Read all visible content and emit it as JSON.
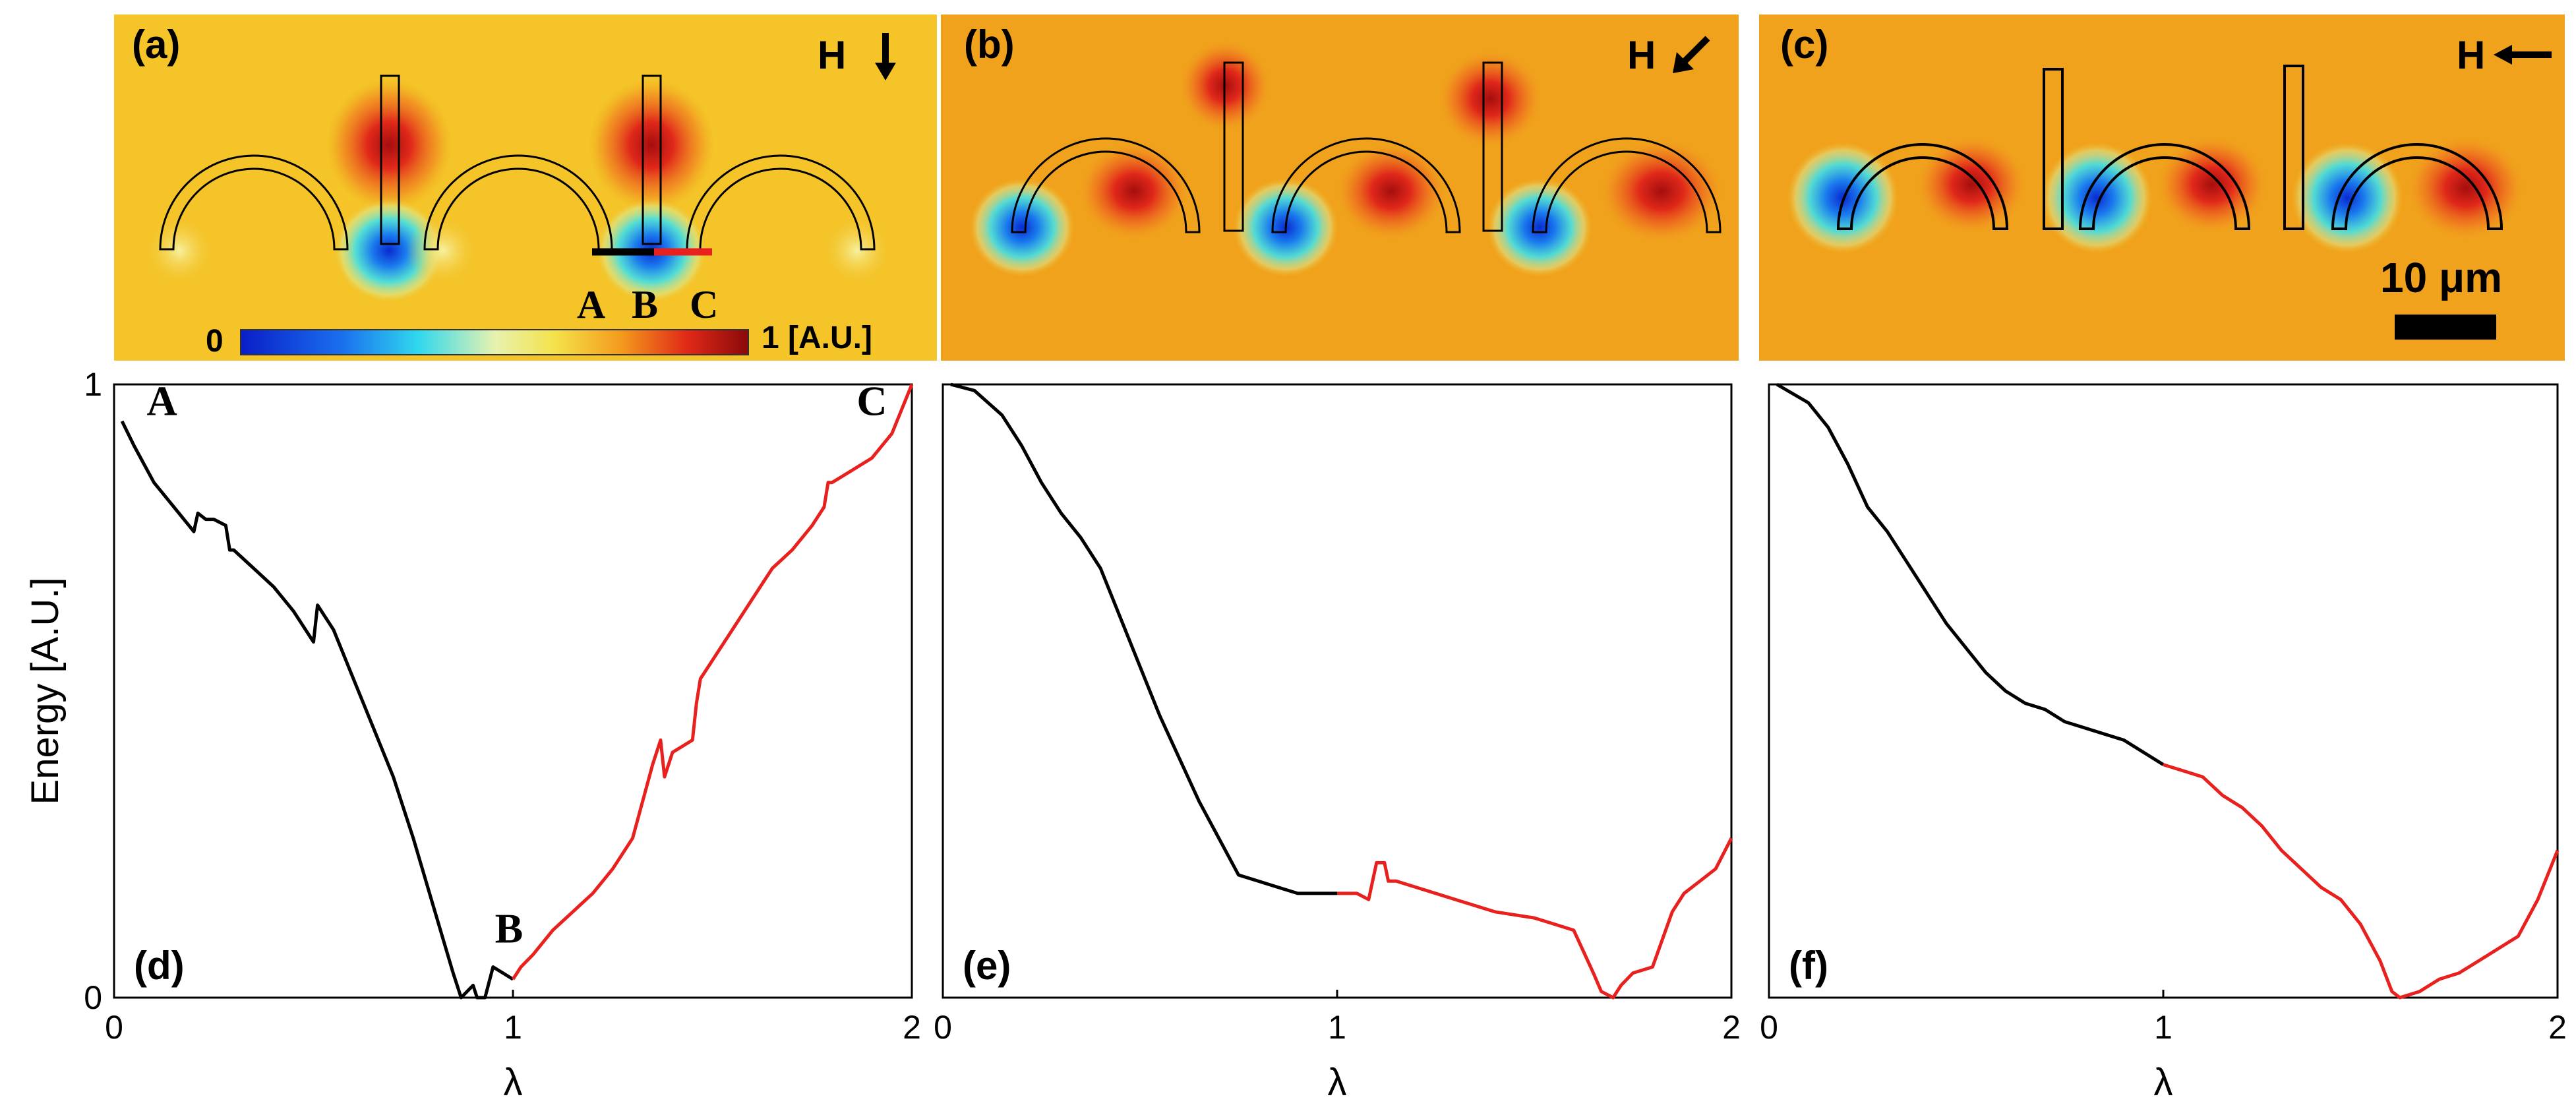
{
  "colors": {
    "black_curve": "#000000",
    "red_curve": "#e8201e",
    "field_bg": "#f0a21c",
    "field_bg_a": "#f5c025",
    "hot": "#d81c10",
    "cold": "#1560e0"
  },
  "maps": [
    {
      "label": "(a)",
      "field": "H",
      "arrow": "down",
      "arrow_icon": "arrow-down-icon"
    },
    {
      "label": "(b)",
      "field": "H",
      "arrow": "down-left",
      "arrow_icon": "arrow-down-left-icon"
    },
    {
      "label": "(c)",
      "field": "H",
      "arrow": "left",
      "arrow_icon": "arrow-left-icon"
    }
  ],
  "colorbar": {
    "min_label": "0",
    "max_label": "1 [A.U.]",
    "markers": [
      "A",
      "B",
      "C"
    ]
  },
  "scalebar": {
    "label": "10 μm"
  },
  "chart_data": [
    {
      "type": "line",
      "label": "(d)",
      "xlabel": "λ",
      "ylabel": "Energy [A.U.]",
      "xlim": [
        0,
        2
      ],
      "ylim": [
        0,
        1
      ],
      "xticks": [
        "0",
        "1",
        "2"
      ],
      "yticks": [
        "0",
        "1"
      ],
      "annotations": [
        {
          "text": "A",
          "x": 0.12,
          "y": 0.95
        },
        {
          "text": "B",
          "x": 0.99,
          "y": 0.09
        },
        {
          "text": "C",
          "x": 1.9,
          "y": 0.95
        }
      ],
      "series": [
        {
          "name": "A-B",
          "color": "black",
          "x": [
            0.02,
            0.05,
            0.1,
            0.15,
            0.2,
            0.21,
            0.23,
            0.25,
            0.28,
            0.29,
            0.3,
            0.35,
            0.4,
            0.45,
            0.5,
            0.51,
            0.55,
            0.6,
            0.65,
            0.7,
            0.75,
            0.8,
            0.85,
            0.87,
            0.9,
            0.91,
            0.93,
            0.95,
            1.0
          ],
          "y": [
            0.94,
            0.9,
            0.84,
            0.8,
            0.76,
            0.79,
            0.78,
            0.78,
            0.77,
            0.73,
            0.73,
            0.7,
            0.67,
            0.63,
            0.58,
            0.64,
            0.6,
            0.52,
            0.44,
            0.36,
            0.26,
            0.15,
            0.04,
            0.0,
            0.02,
            0.0,
            0.0,
            0.05,
            0.03
          ]
        },
        {
          "name": "B-C",
          "color": "red",
          "x": [
            1.0,
            1.02,
            1.05,
            1.1,
            1.15,
            1.2,
            1.25,
            1.3,
            1.35,
            1.37,
            1.38,
            1.4,
            1.45,
            1.46,
            1.47,
            1.48,
            1.5,
            1.55,
            1.6,
            1.65,
            1.7,
            1.75,
            1.78,
            1.79,
            1.8,
            1.85,
            1.9,
            1.95,
            2.0
          ],
          "y": [
            0.03,
            0.05,
            0.07,
            0.11,
            0.14,
            0.17,
            0.21,
            0.26,
            0.38,
            0.42,
            0.36,
            0.4,
            0.42,
            0.48,
            0.52,
            0.53,
            0.55,
            0.6,
            0.65,
            0.7,
            0.73,
            0.77,
            0.8,
            0.84,
            0.84,
            0.86,
            0.88,
            0.92,
            1.0
          ]
        }
      ]
    },
    {
      "type": "line",
      "label": "(e)",
      "xlabel": "λ",
      "ylabel": "",
      "xlim": [
        0,
        2
      ],
      "ylim": [
        0,
        1
      ],
      "xticks": [
        "0",
        "1",
        "2"
      ],
      "yticks": [],
      "series": [
        {
          "name": "black",
          "color": "black",
          "x": [
            0.02,
            0.08,
            0.15,
            0.2,
            0.25,
            0.3,
            0.35,
            0.4,
            0.45,
            0.5,
            0.55,
            0.6,
            0.65,
            0.7,
            0.75,
            0.8,
            0.85,
            0.9,
            0.95,
            1.0
          ],
          "y": [
            1.0,
            0.99,
            0.95,
            0.9,
            0.84,
            0.79,
            0.75,
            0.7,
            0.62,
            0.54,
            0.46,
            0.39,
            0.32,
            0.26,
            0.2,
            0.19,
            0.18,
            0.17,
            0.17,
            0.17
          ]
        },
        {
          "name": "red",
          "color": "red",
          "x": [
            1.0,
            1.05,
            1.08,
            1.1,
            1.12,
            1.13,
            1.15,
            1.2,
            1.3,
            1.35,
            1.4,
            1.5,
            1.55,
            1.6,
            1.65,
            1.67,
            1.7,
            1.72,
            1.75,
            1.8,
            1.85,
            1.88,
            1.92,
            1.96,
            2.0
          ],
          "y": [
            0.17,
            0.17,
            0.16,
            0.22,
            0.22,
            0.19,
            0.19,
            0.18,
            0.16,
            0.15,
            0.14,
            0.13,
            0.12,
            0.11,
            0.04,
            0.01,
            0.0,
            0.02,
            0.04,
            0.05,
            0.14,
            0.17,
            0.19,
            0.21,
            0.26
          ]
        }
      ]
    },
    {
      "type": "line",
      "label": "(f)",
      "xlabel": "λ",
      "ylabel": "",
      "xlim": [
        0,
        2
      ],
      "ylim": [
        0,
        1
      ],
      "xticks": [
        "0",
        "1",
        "2"
      ],
      "yticks": [],
      "series": [
        {
          "name": "black",
          "color": "black",
          "x": [
            0.02,
            0.1,
            0.15,
            0.2,
            0.25,
            0.3,
            0.35,
            0.4,
            0.45,
            0.5,
            0.55,
            0.6,
            0.65,
            0.7,
            0.75,
            0.8,
            0.85,
            0.9,
            0.95,
            1.0
          ],
          "y": [
            1.0,
            0.97,
            0.93,
            0.87,
            0.8,
            0.76,
            0.71,
            0.66,
            0.61,
            0.57,
            0.53,
            0.5,
            0.48,
            0.47,
            0.45,
            0.44,
            0.43,
            0.42,
            0.4,
            0.38
          ]
        },
        {
          "name": "red",
          "color": "red",
          "x": [
            1.0,
            1.05,
            1.1,
            1.15,
            1.2,
            1.25,
            1.3,
            1.35,
            1.4,
            1.45,
            1.5,
            1.55,
            1.58,
            1.6,
            1.65,
            1.7,
            1.75,
            1.8,
            1.9,
            1.95,
            2.0
          ],
          "y": [
            0.38,
            0.37,
            0.36,
            0.33,
            0.31,
            0.28,
            0.24,
            0.21,
            0.18,
            0.16,
            0.12,
            0.06,
            0.01,
            0.0,
            0.01,
            0.03,
            0.04,
            0.06,
            0.1,
            0.16,
            0.24
          ]
        }
      ]
    }
  ]
}
